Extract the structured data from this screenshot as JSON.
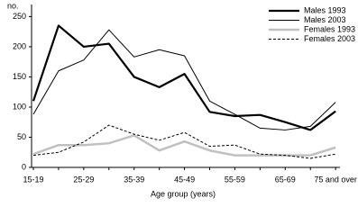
{
  "chart_data": {
    "type": "line",
    "y_unit": "no.",
    "x_label": "Age group (years)",
    "categories": [
      "15-19",
      null,
      "25-29",
      null,
      "35-39",
      null,
      "45-49",
      null,
      "55-59",
      null,
      "65-69",
      null,
      "75 and over"
    ],
    "series": [
      {
        "name": "Males 1993",
        "color": "#000000",
        "values": [
          110,
          235,
          200,
          205,
          150,
          133,
          155,
          92,
          85,
          87,
          75,
          62,
          93
        ]
      },
      {
        "name": "Males 2003",
        "color": "#000000",
        "values": [
          88,
          160,
          178,
          228,
          183,
          195,
          185,
          110,
          88,
          65,
          62,
          68,
          108
        ]
      },
      {
        "name": "Females 1993",
        "color": "#c0c0c0",
        "values": [
          22,
          37,
          37,
          40,
          53,
          28,
          43,
          28,
          20,
          20,
          20,
          20,
          33
        ]
      },
      {
        "name": "Females 2003",
        "color": "#000000",
        "values": [
          20,
          25,
          42,
          70,
          55,
          45,
          58,
          35,
          37,
          22,
          20,
          15,
          22
        ]
      }
    ],
    "ylim": [
      0,
      270
    ],
    "yticks": [
      0,
      50,
      100,
      150,
      200,
      250
    ],
    "legend": "top-right"
  }
}
